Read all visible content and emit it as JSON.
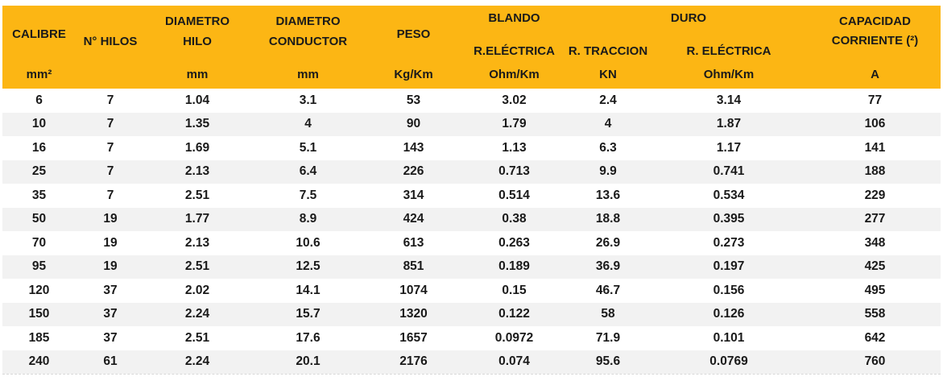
{
  "colors": {
    "header_bg": "#FCB614",
    "row_alt": "#F2F2F2",
    "text": "#1A1A1A"
  },
  "header": {
    "calibre": {
      "title": "CALIBRE",
      "unit": "mm²"
    },
    "hilos": {
      "title": "N° HILOS",
      "unit": ""
    },
    "diametro_hilo": {
      "line1": "DIAMETRO",
      "line2": "HILO",
      "unit": "mm"
    },
    "diametro_conductor": {
      "line1": "DIAMETRO",
      "line2": "CONDUCTOR",
      "unit": "mm"
    },
    "peso": {
      "title": "PESO",
      "unit": "Kg/Km"
    },
    "blando": {
      "group": "BLANDO",
      "sub": "R.ELÉCTRICA",
      "unit": "Ohm/Km"
    },
    "duro": {
      "group": "DURO",
      "sub_traccion": "R. TRACCION",
      "unit_traccion": "KN",
      "sub_electrica": "R. ELÉCTRICA",
      "unit_electrica": "Ohm/Km"
    },
    "capacidad": {
      "line1": "CAPACIDAD",
      "line2": "CORRIENTE (²)",
      "unit": "A"
    }
  },
  "rows": [
    [
      "6",
      "7",
      "1.04",
      "3.1",
      "53",
      "3.02",
      "2.4",
      "3.14",
      "77"
    ],
    [
      "10",
      "7",
      "1.35",
      "4",
      "90",
      "1.79",
      "4",
      "1.87",
      "106"
    ],
    [
      "16",
      "7",
      "1.69",
      "5.1",
      "143",
      "1.13",
      "6.3",
      "1.17",
      "141"
    ],
    [
      "25",
      "7",
      "2.13",
      "6.4",
      "226",
      "0.713",
      "9.9",
      "0.741",
      "188"
    ],
    [
      "35",
      "7",
      "2.51",
      "7.5",
      "314",
      "0.514",
      "13.6",
      "0.534",
      "229"
    ],
    [
      "50",
      "19",
      "1.77",
      "8.9",
      "424",
      "0.38",
      "18.8",
      "0.395",
      "277"
    ],
    [
      "70",
      "19",
      "2.13",
      "10.6",
      "613",
      "0.263",
      "26.9",
      "0.273",
      "348"
    ],
    [
      "95",
      "19",
      "2.51",
      "12.5",
      "851",
      "0.189",
      "36.9",
      "0.197",
      "425"
    ],
    [
      "120",
      "37",
      "2.02",
      "14.1",
      "1074",
      "0.15",
      "46.7",
      "0.156",
      "495"
    ],
    [
      "150",
      "37",
      "2.24",
      "15.7",
      "1320",
      "0.122",
      "58",
      "0.126",
      "558"
    ],
    [
      "185",
      "37",
      "2.51",
      "17.6",
      "1657",
      "0.0972",
      "71.9",
      "0.101",
      "642"
    ],
    [
      "240",
      "61",
      "2.24",
      "20.1",
      "2176",
      "0.074",
      "95.6",
      "0.0769",
      "760"
    ]
  ]
}
